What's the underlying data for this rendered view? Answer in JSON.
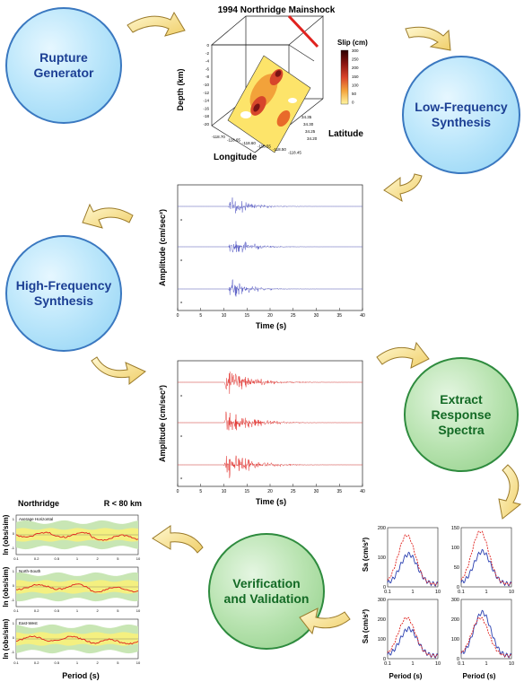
{
  "nodes": {
    "rupture_generator": [
      "Rupture",
      "Generator"
    ],
    "low_frequency": [
      "Low-Frequency",
      "Synthesis"
    ],
    "high_frequency": [
      "High-Frequency",
      "Synthesis"
    ],
    "extract_spectra": [
      "Extract",
      "Response",
      "Spectra"
    ],
    "verification": [
      "Verification",
      "and Validation"
    ]
  },
  "slip_map": {
    "title": "1994 Northridge Mainshock",
    "legend_title": "Slip (cm)",
    "legend_ticks": [
      "300",
      "250",
      "200",
      "150",
      "100",
      "50",
      "0"
    ],
    "zlabel": "Depth (km)",
    "xlabel": "Longitude",
    "ylabel": "Latitude",
    "depth_ticks": [
      "0",
      "-2",
      "-4",
      "-6",
      "-8",
      "-10",
      "-12",
      "-14",
      "-16",
      "-18",
      "-20"
    ],
    "lon_ticks": [
      "-118.70",
      "-118.65",
      "-118.60",
      "-118.55",
      "-118.50",
      "-118.45"
    ],
    "lat_ticks": [
      "34.35",
      "34.30",
      "34.25",
      "34.20"
    ]
  },
  "low_freq_traces": {
    "ylabel": "Amplitude (cm/sec²)",
    "xlabel": "Time (s)",
    "x_ticks": [
      "0",
      "5",
      "10",
      "15",
      "20",
      "25",
      "30",
      "35",
      "40"
    ],
    "color": "#4a4ec0"
  },
  "high_freq_traces": {
    "ylabel": "Amplitude (cm/sec²)",
    "xlabel": "Time (s)",
    "x_ticks": [
      "0",
      "5",
      "10",
      "15",
      "20",
      "25",
      "30",
      "35",
      "40"
    ],
    "color": "#e0221e"
  },
  "response_spectra": {
    "ylabel": "Sa (cm/s²)",
    "xlabel": "Period (s)",
    "x_ticks": [
      "0.1",
      "1",
      "10"
    ],
    "panels": [
      {
        "y_ticks": [
          "200",
          "100",
          "0"
        ]
      },
      {
        "y_ticks": [
          "150",
          "100",
          "50",
          "0"
        ]
      },
      {
        "y_ticks": [
          "300",
          "200",
          "100",
          "0"
        ]
      },
      {
        "y_ticks": [
          "300",
          "200",
          "100",
          "0"
        ]
      }
    ],
    "observed_color": "#2a3fb0",
    "simulated_color": "#e0221e"
  },
  "residuals": {
    "title_left": "Northridge",
    "title_right": "R < 80 km",
    "ylabel": "ln (obs/sim)",
    "xlabel": "Period (s)",
    "x_ticks": [
      "0.1",
      "0.2",
      "0.5",
      "1",
      "2",
      "5",
      "10"
    ],
    "panel_labels": [
      "Average Horizontal",
      "North-South",
      "East-West"
    ],
    "y_ticks": [
      "1",
      "0",
      "-1"
    ]
  }
}
